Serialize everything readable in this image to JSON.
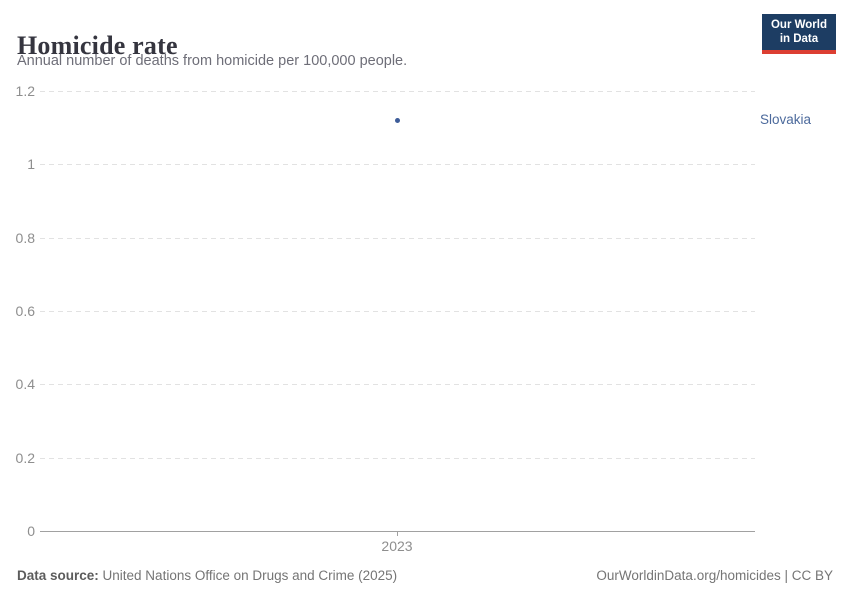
{
  "header": {
    "title": "Homicide rate",
    "subtitle": "Annual number of deaths from homicide per 100,000 people.",
    "logo": {
      "line1": "Our World",
      "line2": "in Data",
      "background_color": "#1d3d63",
      "accent_color": "#dc3e32"
    }
  },
  "chart_data": {
    "type": "scatter",
    "title": "Homicide rate",
    "subtitle": "Annual number of deaths from homicide per 100,000 people.",
    "series": [
      {
        "name": "Slovakia",
        "x": [
          2023
        ],
        "values": [
          1.12
        ],
        "color": "#3d5c99",
        "label_color": "#4c6a9c"
      }
    ],
    "xlabel": "",
    "ylabel": "",
    "x_ticks": [
      "2023"
    ],
    "y_ticks": [
      {
        "label": "1.2",
        "value": 1.2
      },
      {
        "label": "1",
        "value": 1.0
      },
      {
        "label": "0.8",
        "value": 0.8
      },
      {
        "label": "0.6",
        "value": 0.6
      },
      {
        "label": "0.4",
        "value": 0.4
      },
      {
        "label": "0.2",
        "value": 0.2
      },
      {
        "label": "0",
        "value": 0
      }
    ],
    "ylim": [
      0,
      1.2
    ],
    "grid": "dashed-horizontal",
    "legend_position": "right-of-point"
  },
  "footer": {
    "source_label": "Data source:",
    "source_text": " United Nations Office on Drugs and Crime (2025)",
    "attribution": "OurWorldinData.org/homicides | CC BY"
  }
}
